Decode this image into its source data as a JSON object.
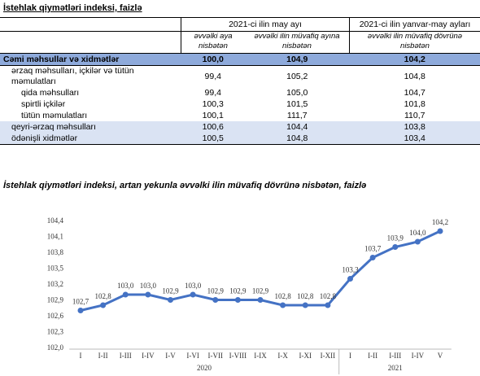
{
  "title": "İstehlak qiymətləri indeksi, faizlə",
  "table": {
    "headers": [
      "2021-ci ilin may ayı",
      "2021-ci ilin yanvar-may ayları"
    ],
    "subheaders": [
      "əvvəlki aya nisbətən",
      "əvvəlki ilin müvafiq ayına nisbətən",
      "əvvəlki ilin müvafiq dövrünə nisbətən"
    ],
    "rows": [
      [
        "Cəmi məhsullar və xidmətlər",
        "100,0",
        "104,9",
        "104,2"
      ],
      [
        "ərzaq məhsulları, içkilər və tütün məmulatları",
        "99,4",
        "105,2",
        "104,8"
      ],
      [
        "qida məhsulları",
        "99,4",
        "105,0",
        "104,7"
      ],
      [
        "spirtli içkilər",
        "100,3",
        "101,5",
        "101,8"
      ],
      [
        "tütün məmulatları",
        "100,1",
        "111,7",
        "110,7"
      ],
      [
        "qeyri-ərzaq məhsulları",
        "100,6",
        "104,4",
        "103,8"
      ],
      [
        "ödənişli xidmətlər",
        "100,5",
        "104,8",
        "103,4"
      ]
    ]
  },
  "chart_data": {
    "type": "line",
    "title": "İstehlak qiymətləri indeksi, artan yekunla əvvəlki ilin müvafiq dövrünə nisbətən, faizlə",
    "categories": [
      "I",
      "I-II",
      "I-III",
      "I-IV",
      "I-V",
      "I-VI",
      "I-VII",
      "I-VIII",
      "I-IX",
      "I-X",
      "I-XI",
      "I-XII",
      "I",
      "I-II",
      "I-III",
      "I-IV",
      "V"
    ],
    "x_groups": [
      "2020",
      "2021"
    ],
    "values": [
      102.7,
      102.8,
      103.0,
      103.0,
      102.9,
      103.0,
      102.9,
      102.9,
      102.9,
      102.8,
      102.8,
      102.8,
      103.3,
      103.7,
      103.9,
      104.0,
      104.2
    ],
    "value_labels": [
      "102,7",
      "102,8",
      "103,0",
      "103,0",
      "102,9",
      "103,0",
      "102,9",
      "102,9",
      "102,9",
      "102,8",
      "102,8",
      "102,8",
      "103,3",
      "103,7",
      "103,9",
      "104,0",
      "104,2"
    ],
    "color": "#4472c4",
    "ylim": [
      102.0,
      104.4
    ],
    "yticks": [
      {
        "value": 102.0,
        "label": "102,0"
      },
      {
        "value": 102.3,
        "label": "102,3"
      },
      {
        "value": 102.6,
        "label": "102,6"
      },
      {
        "value": 102.9,
        "label": "102,9"
      },
      {
        "value": 103.2,
        "label": "103,2"
      },
      {
        "value": 103.5,
        "label": "103,5"
      },
      {
        "value": 103.8,
        "label": "103,8"
      },
      {
        "value": 104.1,
        "label": "104,1"
      },
      {
        "value": 104.4,
        "label": "104,4"
      }
    ]
  }
}
